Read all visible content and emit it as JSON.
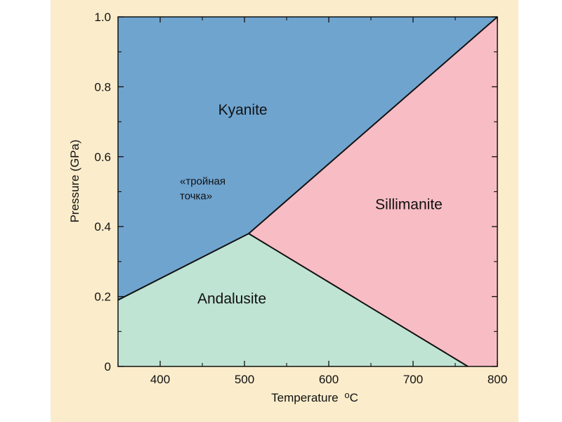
{
  "chart_data": {
    "type": "area",
    "xlabel": "Temperature",
    "xlabel_unit": "oC",
    "ylabel": "Pressure (GPa)",
    "xlim": [
      350,
      800
    ],
    "ylim": [
      0,
      1.0
    ],
    "x_ticks": [
      400,
      500,
      600,
      700,
      800
    ],
    "x_tick_labels": [
      "400",
      "500",
      "600",
      "700",
      "800"
    ],
    "y_ticks": [
      0,
      0.2,
      0.4,
      0.6,
      0.8,
      1.0
    ],
    "y_tick_labels": [
      "0",
      "0.2",
      "0.4",
      "0.6",
      "0.8",
      "1.0"
    ],
    "grid": false,
    "triple_point": {
      "x": 505,
      "y": 0.38
    },
    "boundaries": [
      {
        "from": [
          350,
          0.19
        ],
        "to": [
          505,
          0.38
        ]
      },
      {
        "from": [
          505,
          0.38
        ],
        "to": [
          800,
          1.0
        ]
      },
      {
        "from": [
          505,
          0.38
        ],
        "to": [
          765,
          0.0
        ]
      }
    ],
    "regions": [
      {
        "name": "Kyanite",
        "color": "#6fa4cf",
        "polygon": [
          [
            350,
            0.19
          ],
          [
            505,
            0.38
          ],
          [
            800,
            1.0
          ],
          [
            350,
            1.0
          ]
        ],
        "label_at": [
          498,
          0.72
        ]
      },
      {
        "name": "Sillimanite",
        "color": "#f8bcc4",
        "polygon": [
          [
            505,
            0.38
          ],
          [
            800,
            1.0
          ],
          [
            800,
            0
          ],
          [
            765,
            0
          ]
        ],
        "label_at": [
          695,
          0.45
        ]
      },
      {
        "name": "Andalusite",
        "color": "#bfe4d4",
        "polygon": [
          [
            350,
            0.19
          ],
          [
            505,
            0.38
          ],
          [
            765,
            0
          ],
          [
            350,
            0
          ]
        ],
        "label_at": [
          485,
          0.18
        ]
      }
    ],
    "annotations": [
      {
        "lines": [
          "«тройная",
          "точка»"
        ],
        "at": [
          425,
          0.52
        ]
      }
    ],
    "background": "#fbeccb",
    "line_color": "#111111"
  }
}
